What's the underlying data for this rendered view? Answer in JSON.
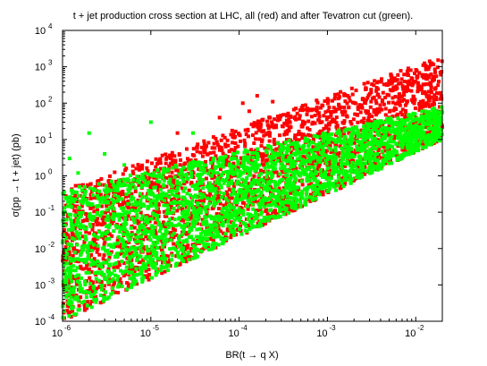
{
  "chart_data": {
    "type": "scatter",
    "title": "t + jet production cross section at LHC, all (red) and after Tevatron cut (green).",
    "xlabel": "BR(t → q X)",
    "ylabel": "σ(pp → t + jet) (pb)",
    "xscale": "log",
    "yscale": "log",
    "xlim": [
      1e-06,
      0.02
    ],
    "ylim": [
      0.0001,
      10000.0
    ],
    "grid": false,
    "x_ticks": [
      {
        "value": 1e-06,
        "base": "10",
        "exp": "-6"
      },
      {
        "value": 1e-05,
        "base": "10",
        "exp": "-5"
      },
      {
        "value": 0.0001,
        "base": "10",
        "exp": "-4"
      },
      {
        "value": 0.001,
        "base": "10",
        "exp": "-3"
      },
      {
        "value": 0.01,
        "base": "10",
        "exp": "-2"
      }
    ],
    "y_ticks": [
      {
        "value": 0.0001,
        "base": "10",
        "exp": "-4"
      },
      {
        "value": 0.001,
        "base": "10",
        "exp": "-3"
      },
      {
        "value": 0.01,
        "base": "10",
        "exp": "-2"
      },
      {
        "value": 0.1,
        "base": "10",
        "exp": "-1"
      },
      {
        "value": 1.0,
        "base": "10",
        "exp": "0"
      },
      {
        "value": 10.0,
        "base": "10",
        "exp": "1"
      },
      {
        "value": 100.0,
        "base": "10",
        "exp": "2"
      },
      {
        "value": 1000.0,
        "base": "10",
        "exp": "3"
      },
      {
        "value": 10000.0,
        "base": "10",
        "exp": "4"
      }
    ],
    "series": [
      {
        "color": "#ff0000",
        "region": {
          "x_min": 1e-06,
          "x_max": 0.02,
          "lower_y_at_xmin": 0.0001,
          "lower_y_at_xmax": 10,
          "upper_y_at_xmin": 0.4,
          "upper_y_at_xmax": 2000
        },
        "outliers": [
          [
            2e-05,
            15
          ],
          [
            0.00011,
            100
          ],
          [
            0.00016,
            160
          ],
          [
            0.00024,
            110
          ],
          [
            6e-05,
            40
          ],
          [
            4e-05,
            9
          ],
          [
            0.00013,
            60
          ]
        ]
      },
      {
        "color": "#00ff00",
        "region": {
          "x_min": 1e-06,
          "x_max": 0.02,
          "lower_y_at_xmin": 0.0001,
          "lower_y_at_xmax": 10,
          "upper_y_at_xmin": 0.4,
          "upper_y_at_xmax": 80
        },
        "outliers": [
          [
            2e-06,
            15
          ],
          [
            1.5e-06,
            1.2
          ],
          [
            1.2e-06,
            3
          ],
          [
            3e-06,
            4
          ],
          [
            1e-05,
            30
          ],
          [
            5e-06,
            2
          ],
          [
            3e-05,
            15
          ]
        ]
      }
    ]
  }
}
